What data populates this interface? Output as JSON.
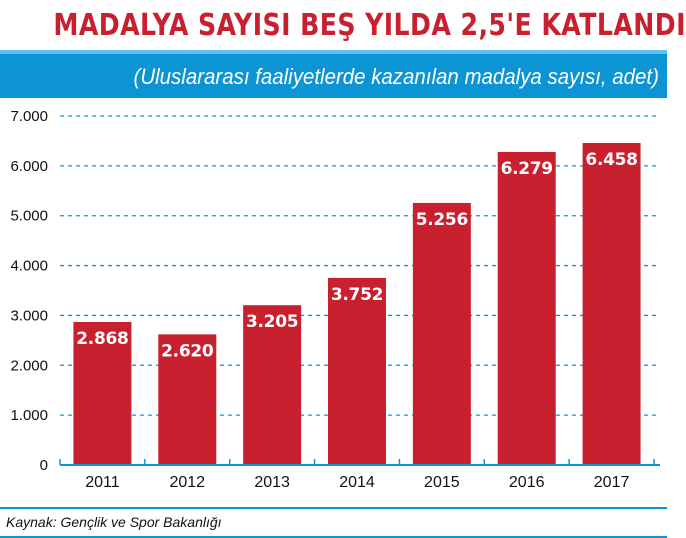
{
  "header": {
    "title": "MADALYA SAYISI BEŞ YILDA 2,5'E KATLANDI",
    "subtitle": "(Uluslararası faaliyetlerde kazanılan madalya sayısı, adet)"
  },
  "footer": {
    "source": "Kaynak: Gençlik ve Spor Bakanlığı"
  },
  "colors": {
    "title": "#c8202f",
    "band": "#0d94d4",
    "bar": "#c8202f",
    "grid": "#0d94d4"
  },
  "chart_data": {
    "type": "bar",
    "title": "MADALYA SAYISI BEŞ YILDA 2,5'E KATLANDI",
    "subtitle": "(Uluslararası faaliyetlerde kazanılan madalya sayısı, adet)",
    "categories": [
      "2011",
      "2012",
      "2013",
      "2014",
      "2015",
      "2016",
      "2017"
    ],
    "values": [
      2868,
      2620,
      3205,
      3752,
      5256,
      6279,
      6458
    ],
    "value_labels": [
      "2.868",
      "2.620",
      "3.205",
      "3.752",
      "5.256",
      "6.279",
      "6.458"
    ],
    "yticks": [
      0,
      1000,
      2000,
      3000,
      4000,
      5000,
      6000,
      7000
    ],
    "ytick_labels": [
      "0",
      "1.000",
      "2.000",
      "3.000",
      "4.000",
      "5.000",
      "6.000",
      "7.000"
    ],
    "ylim": [
      0,
      7000
    ],
    "grid": true,
    "grid_style": "dashed horizontal",
    "xlabel": "",
    "ylabel": ""
  }
}
